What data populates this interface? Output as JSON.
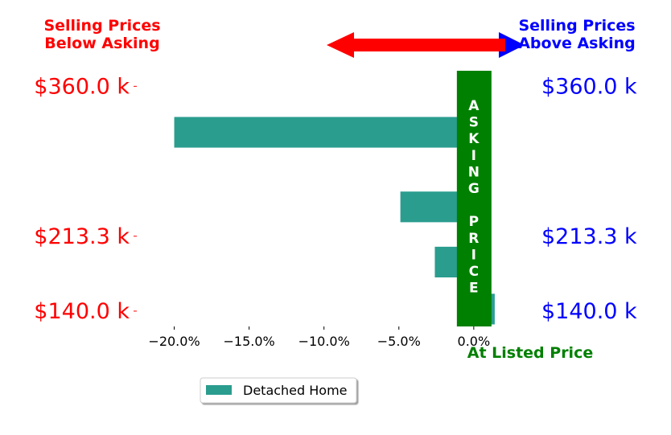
{
  "header": {
    "below_line1": "Selling Prices",
    "below_line2": "Below Asking",
    "above_line1": "Selling Prices",
    "above_line2": "Above Asking"
  },
  "asking_bar": {
    "letters": [
      "A",
      "S",
      "K",
      "I",
      "N",
      "G",
      "",
      "P",
      "R",
      "I",
      "C",
      "E"
    ],
    "color": "#008000"
  },
  "at_listed_price": "At Listed Price",
  "colors": {
    "below": "#ff0000",
    "above": "#0000ff",
    "bar": "#2a9d8f",
    "asking": "#008000"
  },
  "chart_data": {
    "type": "bar",
    "orientation": "horizontal",
    "xlim": [
      -0.225,
      0.035
    ],
    "ylim": [
      125,
      376
    ],
    "xticks": [
      -0.2,
      -0.15,
      -0.1,
      -0.05,
      0.0
    ],
    "xtick_labels": [
      "−20.0%",
      "−15.0%",
      "−10.0%",
      "−5.0%",
      "0.0%"
    ],
    "yticks": [
      140.0,
      213.3,
      360.0
    ],
    "ytick_labels_left": [
      "$140.0 k",
      "$213.3 k",
      "$360.0 k"
    ],
    "ytick_labels_right": [
      "$140.0 k",
      "$213.3 k",
      "$360.0 k"
    ],
    "series": [
      {
        "name": "Detached Home",
        "bars": [
          {
            "y": 315,
            "value": -0.2
          },
          {
            "y": 242,
            "value": -0.049
          },
          {
            "y": 188,
            "value": -0.026
          },
          {
            "y": 142,
            "value": 0.014
          }
        ]
      }
    ],
    "bar_height": 30,
    "legend": "bottom-left"
  }
}
